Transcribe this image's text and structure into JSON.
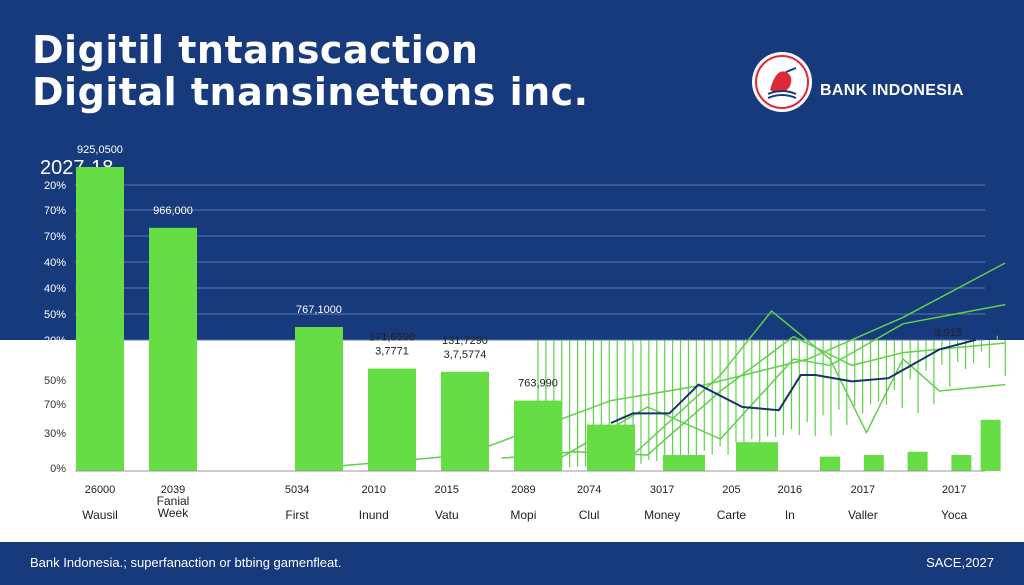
{
  "header": {
    "title_line1": "Digitil tntanscaction",
    "title_line2": "Digital tnansinettons inc.",
    "brand": "BANK INDONESIA",
    "period": "2027-18"
  },
  "footer": {
    "left": "Bank Indonesia.; superfanaction or btbing gamenfleat.",
    "right": "SACE,2027"
  },
  "colors": {
    "navy": "#173a7c",
    "bar_green": "#66dd44",
    "line_green": "#5fd14a",
    "dark_line": "#17306e",
    "logo_red": "#e0283a"
  },
  "chart_data": {
    "type": "bar",
    "title": "",
    "upper_y_ticks": [
      "20%",
      "70%",
      "70%",
      "40%",
      "40%",
      "50%",
      "20%"
    ],
    "lower_y_ticks": [
      "50%",
      "70%",
      "30%",
      "0%"
    ],
    "categories": [
      {
        "year": "26000",
        "name": "Wausil"
      },
      {
        "year": "2039",
        "name": "Fanial\nWeek"
      },
      {
        "year": "5034",
        "name": "First"
      },
      {
        "year": "2010",
        "name": "Inund"
      },
      {
        "year": "2015",
        "name": "Vatu"
      },
      {
        "year": "2089",
        "name": "Mopi"
      },
      {
        "year": "2074",
        "name": "Clul"
      },
      {
        "year": "3017",
        "name": "Money"
      },
      {
        "year": "205",
        "name": "Carte"
      },
      {
        "year": "2016",
        "name": "In"
      },
      {
        "year": "2017",
        "name": "Valler"
      },
      {
        "year": "2017",
        "name": "Yoca"
      }
    ],
    "bars": [
      {
        "x": 0,
        "value": 0.95,
        "label": "925,0500"
      },
      {
        "x": 1,
        "value": 0.76,
        "label": "966,000"
      },
      {
        "x": 3,
        "value": 0.45,
        "label": "767,1000"
      },
      {
        "x": 4,
        "value": 0.32,
        "label": "171,6590\n3,7771"
      },
      {
        "x": 5,
        "value": 0.31,
        "label": "131,7290\n3,7,5774"
      },
      {
        "x": 6,
        "value": 0.22,
        "label": "763,990"
      },
      {
        "x": 7,
        "value": 0.145,
        "label": ""
      },
      {
        "x": 8,
        "value": 0.05,
        "label": ""
      },
      {
        "x": 9,
        "value": 0.09,
        "label": ""
      },
      {
        "x": 10,
        "value": 0.045,
        "label": ""
      },
      {
        "x": 10.6,
        "value": 0.05,
        "label": ""
      },
      {
        "x": 11.2,
        "value": 0.06,
        "label": ""
      },
      {
        "x": 11.8,
        "value": 0.05,
        "label": ""
      },
      {
        "x": 12.2,
        "value": 0.16,
        "label": ""
      }
    ],
    "dark_series": {
      "x": [
        7,
        7.3,
        7.8,
        8.2,
        8.8,
        9.3,
        9.6,
        9.8,
        10.3,
        10.8,
        11.5,
        12
      ],
      "values": [
        0.15,
        0.18,
        0.18,
        0.27,
        0.2,
        0.19,
        0.3,
        0.3,
        0.28,
        0.29,
        0.38,
        0.41
      ],
      "end_label": "8,915"
    },
    "green_series": [
      {
        "x": [
          3,
          5,
          7,
          8.3,
          9.7,
          11,
          12.4
        ],
        "values": [
          0.01,
          0.05,
          0.22,
          0.27,
          0.35,
          0.48,
          0.65
        ]
      },
      {
        "x": [
          5.5,
          6.5,
          7.5,
          8.5,
          9.5,
          10.3,
          11,
          12.4
        ],
        "values": [
          0.04,
          0.06,
          0.05,
          0.25,
          0.42,
          0.33,
          0.37,
          0.4
        ]
      },
      {
        "x": [
          7.3,
          8.5,
          9.2,
          10,
          10.5,
          11,
          11.5,
          12.4
        ],
        "values": [
          0.05,
          0.3,
          0.5,
          0.35,
          0.12,
          0.35,
          0.25,
          0.27
        ]
      },
      {
        "x": [
          6,
          7.5,
          8.5,
          9.5,
          10,
          11,
          12.4
        ],
        "values": [
          0.0,
          0.2,
          0.1,
          0.35,
          0.33,
          0.46,
          0.52
        ]
      }
    ],
    "spikes": {
      "x_start": 6.0,
      "x_end": 12.4,
      "count": 60,
      "min": 0.01,
      "max": 0.45
    }
  }
}
